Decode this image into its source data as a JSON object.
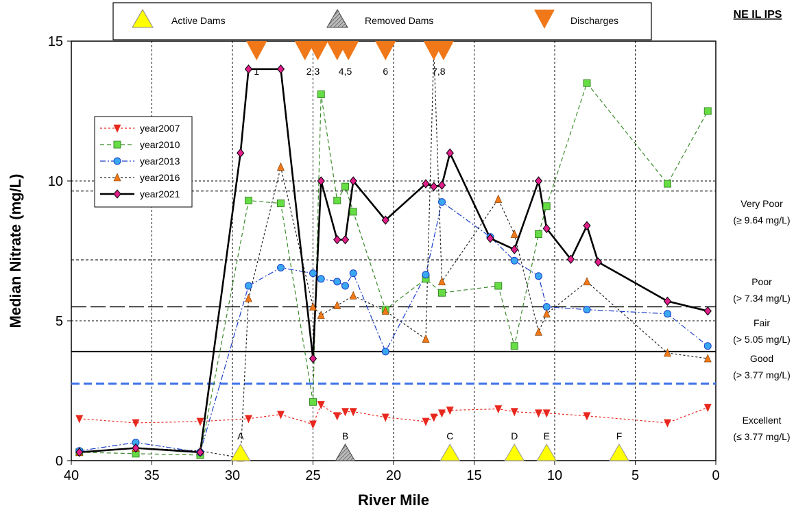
{
  "header": {
    "label": "NE IL IPS"
  },
  "top_legend": {
    "active": "Active Dams",
    "removed": "Removed Dams",
    "discharges": "Discharges"
  },
  "chart_data": {
    "type": "line",
    "xlabel": "River Mile",
    "ylabel": "Median Nitrate (mg/L)",
    "xlim": [
      40,
      0
    ],
    "ylim": [
      0,
      15
    ],
    "x_ticks": [
      "40",
      "35",
      "30",
      "25",
      "20",
      "15",
      "10",
      "5",
      "0"
    ],
    "y_ticks": [
      "0",
      "5",
      "10",
      "15"
    ],
    "grid": true,
    "legend_position": "left",
    "series": [
      {
        "name": "year2007",
        "color": "#e8281e",
        "marker": "triangle-down",
        "style": "dotted",
        "points": [
          [
            39.5,
            1.5
          ],
          [
            36,
            1.35
          ],
          [
            32,
            1.4
          ],
          [
            29,
            1.5
          ],
          [
            27,
            1.65
          ],
          [
            25,
            1.3
          ],
          [
            24.5,
            2.0
          ],
          [
            23.5,
            1.6
          ],
          [
            23,
            1.75
          ],
          [
            22.5,
            1.75
          ],
          [
            20.5,
            1.55
          ],
          [
            18,
            1.4
          ],
          [
            17.5,
            1.55
          ],
          [
            17,
            1.7
          ],
          [
            16.5,
            1.8
          ],
          [
            13.5,
            1.85
          ],
          [
            12.5,
            1.75
          ],
          [
            11,
            1.7
          ],
          [
            10.5,
            1.7
          ],
          [
            8,
            1.6
          ],
          [
            3,
            1.35
          ],
          [
            0.5,
            1.9
          ]
        ]
      },
      {
        "name": "year2010",
        "color": "#3a8a2a",
        "fill": "#66dd44",
        "marker": "square",
        "style": "dashed",
        "points": [
          [
            39.5,
            0.3
          ],
          [
            36,
            0.25
          ],
          [
            32,
            0.2
          ],
          [
            29,
            9.3
          ],
          [
            27,
            9.2
          ],
          [
            25,
            2.1
          ],
          [
            24.5,
            13.1
          ],
          [
            23.5,
            9.3
          ],
          [
            23,
            9.8
          ],
          [
            22.5,
            8.9
          ],
          [
            20.5,
            5.4
          ],
          [
            18,
            6.5
          ],
          [
            17,
            6.0
          ],
          [
            13.5,
            6.25
          ],
          [
            12.5,
            4.1
          ],
          [
            11,
            8.1
          ],
          [
            10.5,
            9.1
          ],
          [
            8,
            13.5
          ],
          [
            3,
            9.9
          ],
          [
            0.5,
            12.5
          ]
        ]
      },
      {
        "name": "year2013",
        "color": "#1a3ec8",
        "fill": "#3aa8f0",
        "marker": "circle",
        "style": "dashdot",
        "points": [
          [
            39.5,
            0.35
          ],
          [
            36,
            0.65
          ],
          [
            32,
            0.3
          ],
          [
            29,
            6.25
          ],
          [
            27,
            6.9
          ],
          [
            25,
            6.7
          ],
          [
            24.5,
            6.5
          ],
          [
            23.5,
            6.4
          ],
          [
            23,
            6.25
          ],
          [
            22.5,
            6.7
          ],
          [
            20.5,
            3.9
          ],
          [
            18,
            6.65
          ],
          [
            17,
            9.25
          ],
          [
            14,
            8.0
          ],
          [
            12.5,
            7.15
          ],
          [
            11,
            6.6
          ],
          [
            10.5,
            5.5
          ],
          [
            8,
            5.4
          ],
          [
            3,
            5.25
          ],
          [
            0.5,
            4.1
          ]
        ]
      },
      {
        "name": "year2016",
        "color": "#222222",
        "fill": "#f07818",
        "marker": "triangle-up",
        "style": "dotted",
        "points": [
          [
            39.5,
            0.3
          ],
          [
            36,
            0.45
          ],
          [
            32,
            0.35
          ],
          [
            29.5,
            0.1
          ],
          [
            29,
            5.8
          ],
          [
            27,
            10.5
          ],
          [
            25,
            5.5
          ],
          [
            24.5,
            5.2
          ],
          [
            23.5,
            5.55
          ],
          [
            22.5,
            5.9
          ],
          [
            20.5,
            5.35
          ],
          [
            18,
            4.35
          ],
          [
            17.5,
            14.7
          ],
          [
            17,
            6.4
          ],
          [
            13.5,
            9.35
          ],
          [
            12.5,
            8.1
          ],
          [
            11,
            4.6
          ],
          [
            10.5,
            5.25
          ],
          [
            8,
            6.4
          ],
          [
            3,
            3.85
          ],
          [
            0.5,
            3.65
          ]
        ]
      },
      {
        "name": "year2021",
        "color": "#000000",
        "fill": "#e01e8a",
        "marker": "diamond",
        "style": "solid",
        "points": [
          [
            39.5,
            0.3
          ],
          [
            36,
            0.45
          ],
          [
            32,
            0.3
          ],
          [
            29.5,
            11.0
          ],
          [
            29,
            14.0
          ],
          [
            27,
            14.0
          ],
          [
            25,
            3.65
          ],
          [
            24.5,
            10.0
          ],
          [
            23.5,
            7.9
          ],
          [
            23,
            7.9
          ],
          [
            22.5,
            10.0
          ],
          [
            20.5,
            8.6
          ],
          [
            18,
            9.9
          ],
          [
            17.5,
            9.8
          ],
          [
            17,
            9.85
          ],
          [
            16.5,
            11.0
          ],
          [
            14,
            7.95
          ],
          [
            12.5,
            7.55
          ],
          [
            11,
            10.0
          ],
          [
            10.5,
            8.3
          ],
          [
            9,
            7.2
          ],
          [
            8,
            8.4
          ],
          [
            7.3,
            7.1
          ],
          [
            3,
            5.7
          ],
          [
            0.5,
            5.35
          ]
        ]
      }
    ],
    "reference_lines": [
      {
        "y": 9.64,
        "style": "short-dash",
        "color": "#000000"
      },
      {
        "y": 7.18,
        "style": "short-dash",
        "color": "#000000"
      },
      {
        "y": 5.5,
        "style": "long-dash",
        "color": "#000000"
      },
      {
        "y": 3.9,
        "style": "solid",
        "color": "#000000"
      },
      {
        "y": 2.75,
        "style": "dashed",
        "color": "#3a6fe8"
      }
    ],
    "categories_right": [
      {
        "label": "Very Poor",
        "range": "(≥ 9.64 mg/L)"
      },
      {
        "label": "Poor",
        "range": "(> 7.34 mg/L)"
      },
      {
        "label": "Fair",
        "range": "(> 5.05 mg/L)"
      },
      {
        "label": "Good",
        "range": "(> 3.77 mg/L)"
      },
      {
        "label": "Excellent",
        "range": "(≤ 3.77 mg/L)"
      }
    ],
    "active_dams": [
      {
        "label": "A",
        "x": 29.5
      },
      {
        "label": "C",
        "x": 16.5
      },
      {
        "label": "D",
        "x": 12.5
      },
      {
        "label": "E",
        "x": 10.5
      },
      {
        "label": "F",
        "x": 6
      }
    ],
    "removed_dams": [
      {
        "label": "B",
        "x": 23
      }
    ],
    "discharges": [
      28.5,
      25.5,
      24.7,
      23.5,
      22.8,
      20.5,
      17.5,
      16.9
    ],
    "discharge_labels": [
      {
        "label": "1",
        "x": 28.5
      },
      {
        "label": "2,3",
        "x": 25
      },
      {
        "label": "4,5",
        "x": 23
      },
      {
        "label": "6",
        "x": 20.5
      },
      {
        "label": "7,8",
        "x": 17.2
      }
    ]
  }
}
